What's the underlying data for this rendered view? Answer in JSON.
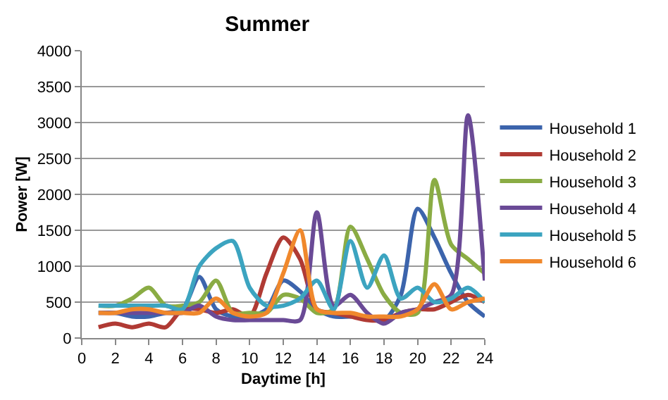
{
  "chart_data": {
    "type": "line",
    "title": "Summer",
    "xlabel": "Daytime [h]",
    "ylabel": "Power [W]",
    "x": [
      1,
      2,
      3,
      4,
      5,
      6,
      7,
      8,
      9,
      10,
      11,
      12,
      13,
      14,
      15,
      16,
      17,
      18,
      19,
      20,
      21,
      22,
      23,
      24
    ],
    "series": [
      {
        "name": "Household 1",
        "color": "#3c64ac",
        "values": [
          350,
          350,
          300,
          300,
          350,
          400,
          850,
          400,
          300,
          300,
          400,
          800,
          650,
          400,
          300,
          300,
          300,
          250,
          600,
          1800,
          1400,
          900,
          500,
          300
        ]
      },
      {
        "name": "Household 2",
        "color": "#b03a34",
        "values": [
          150,
          200,
          150,
          200,
          150,
          400,
          400,
          350,
          400,
          300,
          900,
          1400,
          1100,
          400,
          350,
          300,
          250,
          250,
          350,
          400,
          400,
          500,
          600,
          500
        ]
      },
      {
        "name": "Household 3",
        "color": "#8aac44",
        "values": [
          450,
          450,
          550,
          700,
          450,
          450,
          500,
          800,
          350,
          350,
          350,
          600,
          550,
          350,
          400,
          1550,
          1100,
          600,
          350,
          350,
          2200,
          1300,
          1100,
          900
        ]
      },
      {
        "name": "Household 4",
        "color": "#6a4a96",
        "values": [
          350,
          350,
          350,
          350,
          350,
          350,
          450,
          300,
          250,
          250,
          250,
          250,
          250,
          1750,
          450,
          600,
          350,
          200,
          350,
          400,
          500,
          600,
          3100,
          800
        ]
      },
      {
        "name": "Household 5",
        "color": "#3ca4c0",
        "values": [
          450,
          450,
          450,
          450,
          450,
          400,
          1000,
          1250,
          1350,
          700,
          450,
          450,
          550,
          800,
          400,
          1350,
          700,
          1150,
          550,
          700,
          500,
          550,
          700,
          500
        ]
      },
      {
        "name": "Household 6",
        "color": "#f0882c",
        "values": [
          350,
          350,
          400,
          400,
          350,
          350,
          350,
          550,
          350,
          300,
          350,
          900,
          1500,
          400,
          350,
          350,
          300,
          300,
          300,
          400,
          750,
          400,
          500,
          550
        ]
      }
    ],
    "xlim": [
      0,
      24
    ],
    "xticks": [
      0,
      2,
      4,
      6,
      8,
      10,
      12,
      14,
      16,
      18,
      20,
      22,
      24
    ],
    "ylim": [
      0,
      4000
    ],
    "yticks": [
      0,
      500,
      1000,
      1500,
      2000,
      2500,
      3000,
      3500,
      4000
    ],
    "grid": "y",
    "legend": "right",
    "marker": "none",
    "line_style": "solid"
  }
}
